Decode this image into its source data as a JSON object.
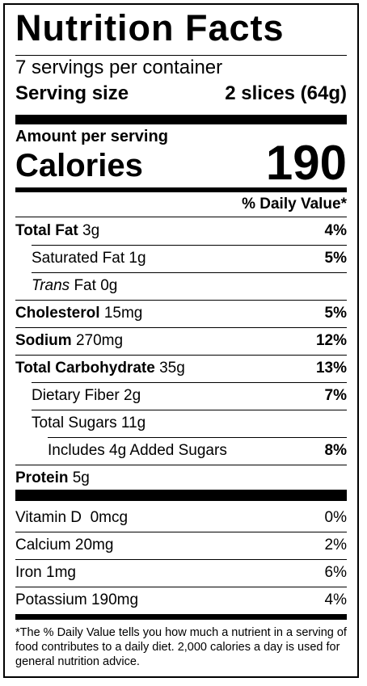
{
  "title": "Nutrition Facts",
  "servings_per_container": "7 servings per container",
  "serving_size_label": "Serving size",
  "serving_size_value": "2 slices (64g)",
  "amount_per_serving": "Amount per serving",
  "calories_label": "Calories",
  "calories_value": "190",
  "daily_value_header": "% Daily Value*",
  "nutrients": [
    {
      "name": "Total Fat",
      "amount": "3g",
      "dv": "4%"
    },
    {
      "name": "Saturated Fat",
      "amount": "1g",
      "dv": "5%"
    },
    {
      "name_italic": "Trans",
      "name": "Fat",
      "amount": "0g",
      "dv": ""
    },
    {
      "name": "Cholesterol",
      "amount": "15mg",
      "dv": "5%"
    },
    {
      "name": "Sodium",
      "amount": "270mg",
      "dv": "12%"
    },
    {
      "name": "Total Carbohydrate",
      "amount": "35g",
      "dv": "13%"
    },
    {
      "name": "Dietary Fiber",
      "amount": "2g",
      "dv": "7%"
    },
    {
      "name": "Total Sugars",
      "amount": "11g",
      "dv": ""
    },
    {
      "name": "Includes 4g Added Sugars",
      "amount": "",
      "dv": "8%"
    },
    {
      "name": "Protein",
      "amount": "5g",
      "dv": ""
    }
  ],
  "vitamins": [
    {
      "name": "Vitamin D",
      "amount": "0mcg",
      "dv": "0%"
    },
    {
      "name": "Calcium",
      "amount": "20mg",
      "dv": "2%"
    },
    {
      "name": "Iron",
      "amount": "1mg",
      "dv": "6%"
    },
    {
      "name": "Potassium",
      "amount": "190mg",
      "dv": "4%"
    }
  ],
  "footnote": "*The % Daily Value tells you how much a nutrient in a serving of food contributes to a daily diet. 2,000 calories a day is used for general nutrition advice."
}
